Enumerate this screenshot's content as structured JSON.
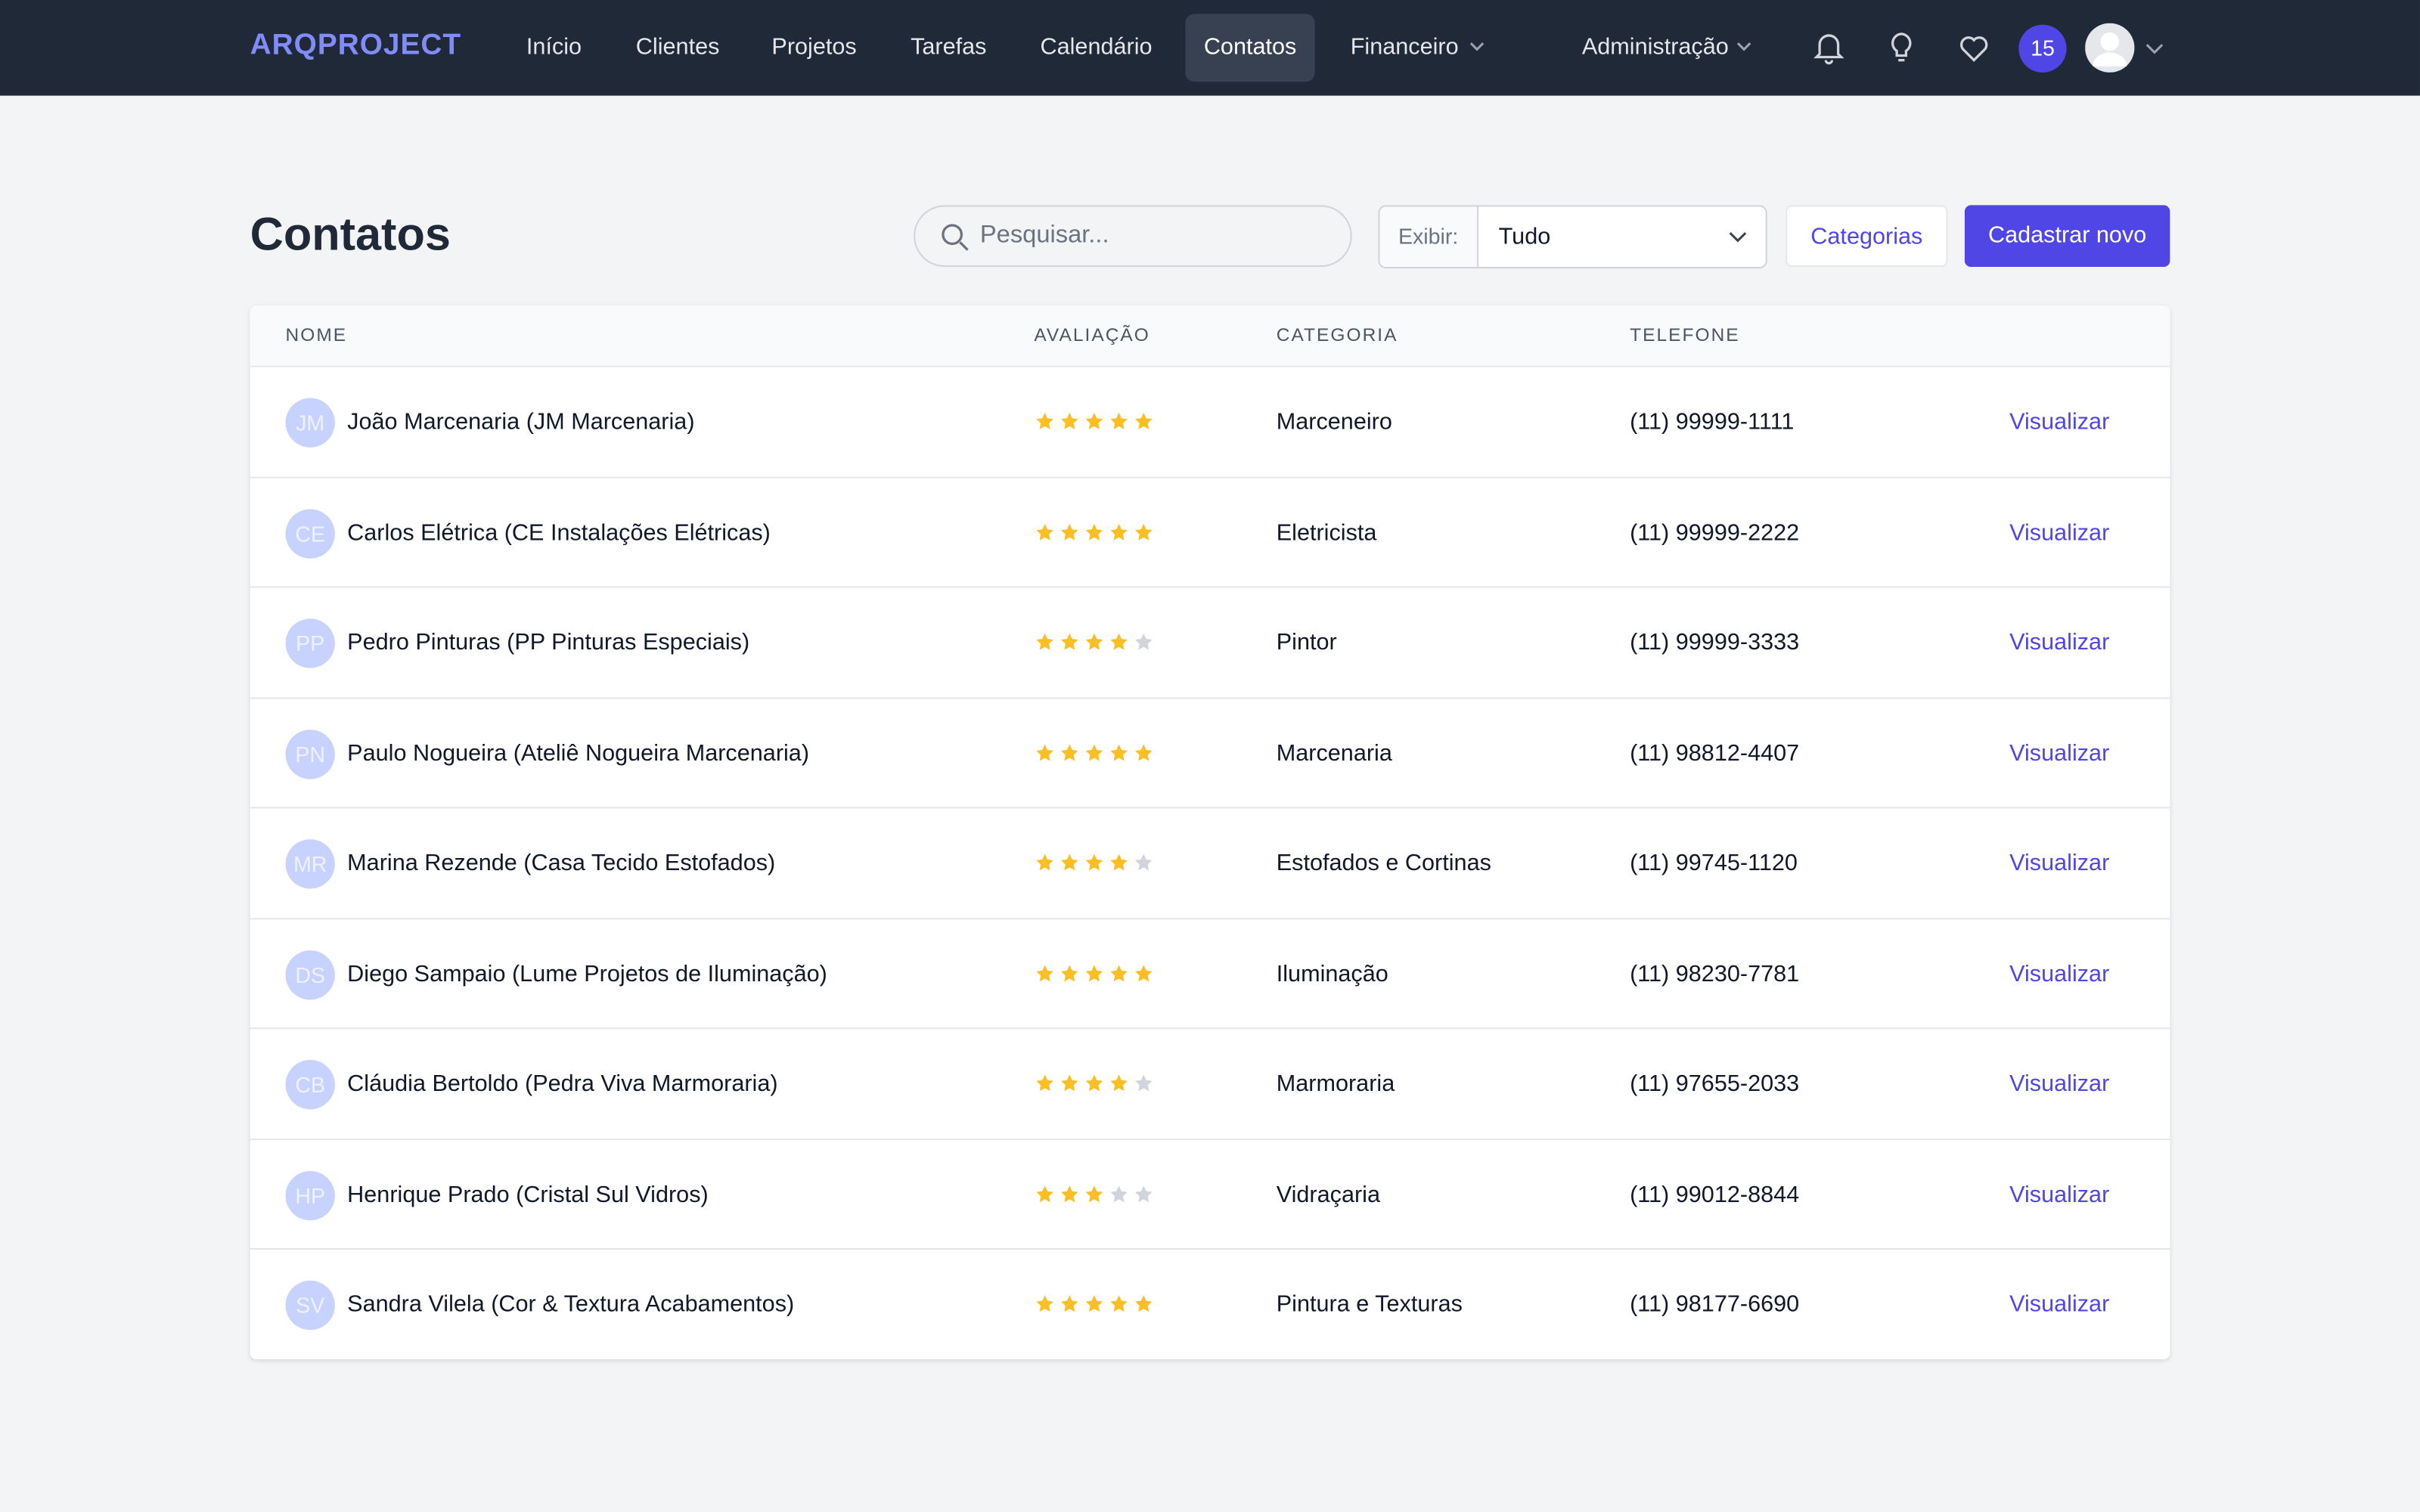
{
  "nav": {
    "logo": "ARQPROJECT",
    "items": [
      {
        "label": "Início"
      },
      {
        "label": "Clientes"
      },
      {
        "label": "Projetos"
      },
      {
        "label": "Tarefas"
      },
      {
        "label": "Calendário"
      },
      {
        "label": "Contatos",
        "active": true
      },
      {
        "label": "Financeiro",
        "dropdown": true
      }
    ],
    "admin": "Administração",
    "badge": "15"
  },
  "header": {
    "title": "Contatos",
    "search_placeholder": "Pesquisar...",
    "filter_label": "Exibir:",
    "filter_value": "Tudo",
    "categories_button": "Categorias",
    "new_button": "Cadastrar novo"
  },
  "table": {
    "columns": [
      "NOME",
      "AVALIAÇÃO",
      "CATEGORIA",
      "TELEFONE"
    ],
    "max_rating": 5,
    "rows": [
      {
        "initials": "JM",
        "name": "João Marcenaria (JM Marcenaria)",
        "rating": 5,
        "category": "Marceneiro",
        "phone": "(11) 99999-1111",
        "action": "Visualizar"
      },
      {
        "initials": "CE",
        "name": "Carlos Elétrica (CE Instalações Elétricas)",
        "rating": 5,
        "category": "Eletricista",
        "phone": "(11) 99999-2222",
        "action": "Visualizar"
      },
      {
        "initials": "PP",
        "name": "Pedro Pinturas (PP Pinturas Especiais)",
        "rating": 4,
        "category": "Pintor",
        "phone": "(11) 99999-3333",
        "action": "Visualizar"
      },
      {
        "initials": "PN",
        "name": "Paulo Nogueira (Ateliê Nogueira Marcenaria)",
        "rating": 5,
        "category": "Marcenaria",
        "phone": "(11) 98812-4407",
        "action": "Visualizar"
      },
      {
        "initials": "MR",
        "name": "Marina Rezende (Casa Tecido Estofados)",
        "rating": 4,
        "category": "Estofados e Cortinas",
        "phone": "(11) 99745-1120",
        "action": "Visualizar"
      },
      {
        "initials": "DS",
        "name": "Diego Sampaio (Lume Projetos de Iluminação)",
        "rating": 5,
        "category": "Iluminação",
        "phone": "(11) 98230-7781",
        "action": "Visualizar"
      },
      {
        "initials": "CB",
        "name": "Cláudia Bertoldo (Pedra Viva Marmoraria)",
        "rating": 4,
        "category": "Marmoraria",
        "phone": "(11) 97655-2033",
        "action": "Visualizar"
      },
      {
        "initials": "HP",
        "name": "Henrique Prado (Cristal Sul Vidros)",
        "rating": 3,
        "category": "Vidraçaria",
        "phone": "(11) 99012-8844",
        "action": "Visualizar"
      },
      {
        "initials": "SV",
        "name": "Sandra Vilela (Cor & Textura Acabamentos)",
        "rating": 5,
        "category": "Pintura e Texturas",
        "phone": "(11) 98177-6690",
        "action": "Visualizar"
      }
    ]
  }
}
